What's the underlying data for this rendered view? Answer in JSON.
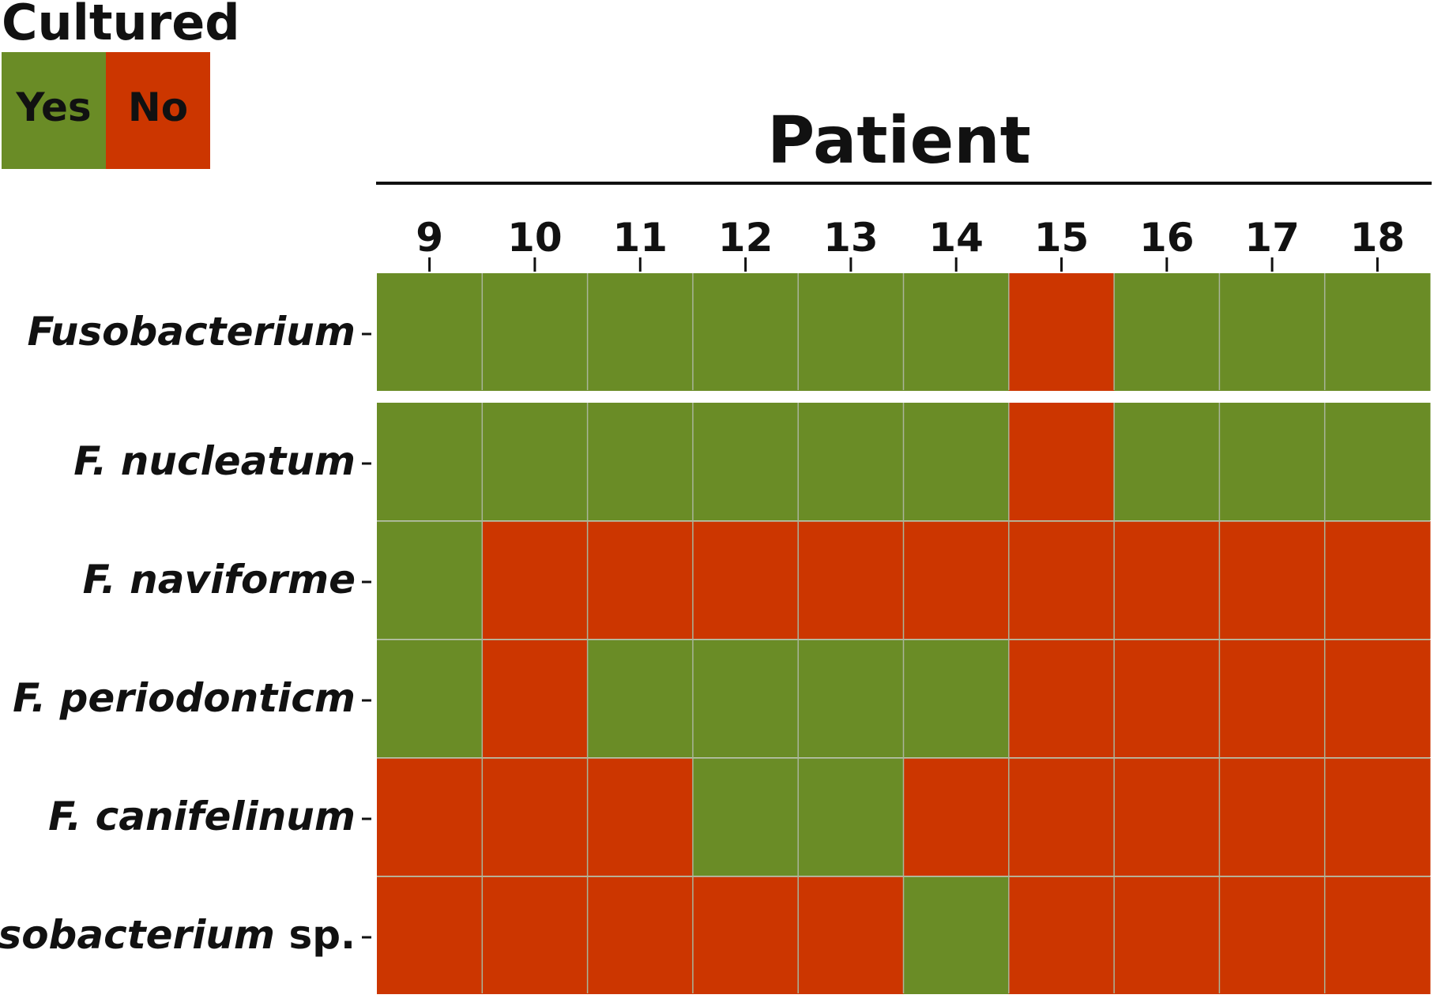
{
  "chart_data": {
    "type": "heatmap",
    "title": "",
    "legend": {
      "title": "Cultured",
      "placement": "top-left",
      "entries": [
        {
          "label": "Yes",
          "value": 1,
          "color": "#6a8c26"
        },
        {
          "label": "No",
          "value": 0,
          "color": "#cc3600"
        }
      ]
    },
    "xlabel": "Patient",
    "xlabel_position": "top",
    "x": [
      "9",
      "10",
      "11",
      "12",
      "13",
      "14",
      "15",
      "16",
      "17",
      "18"
    ],
    "rows": [
      {
        "italic": "Fusobacterium",
        "suffix": "",
        "values": [
          1,
          1,
          1,
          1,
          1,
          1,
          0,
          1,
          1,
          1
        ]
      },
      {
        "italic": "F. nucleatum",
        "suffix": "",
        "values": [
          1,
          1,
          1,
          1,
          1,
          1,
          0,
          1,
          1,
          1
        ]
      },
      {
        "italic": "F. naviforme",
        "suffix": "",
        "values": [
          1,
          0,
          0,
          0,
          0,
          0,
          0,
          0,
          0,
          0
        ]
      },
      {
        "italic": "F. periodonticm",
        "suffix": "",
        "values": [
          1,
          0,
          1,
          1,
          1,
          1,
          0,
          0,
          0,
          0
        ]
      },
      {
        "italic": "F. canifelinum",
        "suffix": "",
        "values": [
          0,
          0,
          0,
          1,
          1,
          0,
          0,
          0,
          0,
          0
        ]
      },
      {
        "italic": "Fusobacterium",
        "suffix": " sp.",
        "values": [
          0,
          0,
          0,
          0,
          0,
          1,
          0,
          0,
          0,
          0
        ]
      }
    ],
    "row_group_separator_after": 1,
    "grid": true,
    "colors": {
      "yes": "#6a8c26",
      "no": "#cc3600",
      "gridline": "#a9b59a"
    }
  }
}
